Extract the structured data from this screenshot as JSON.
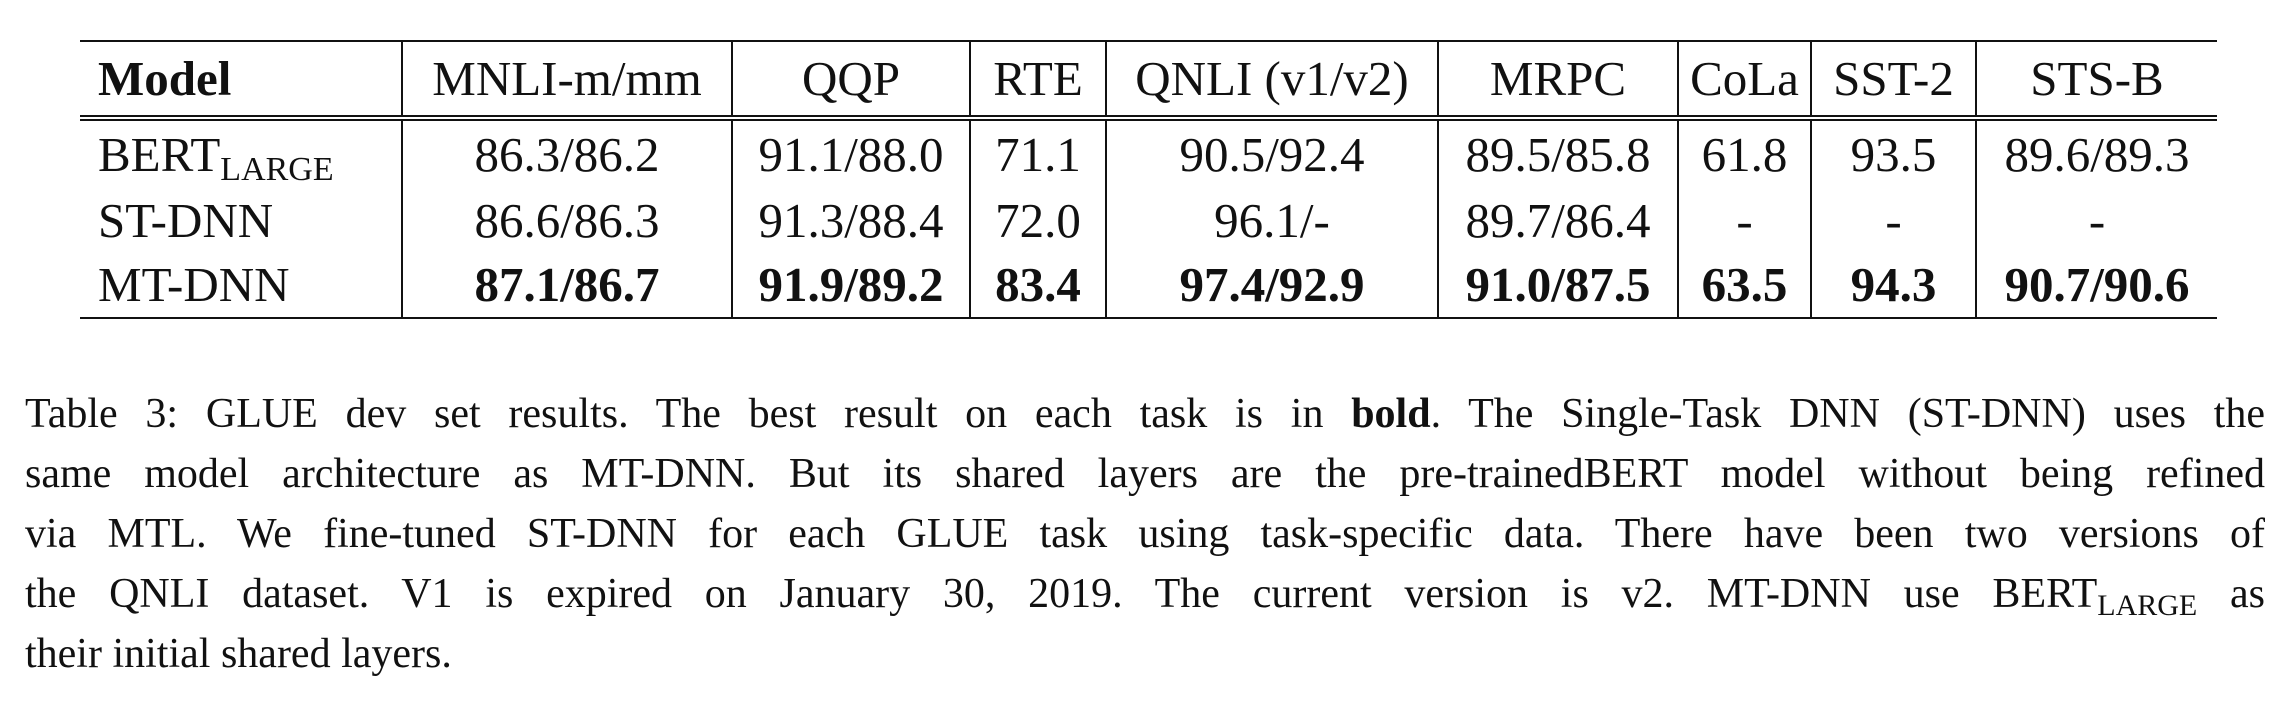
{
  "table": {
    "headers": [
      "Model",
      "MNLI-m/mm",
      "QQP",
      "RTE",
      "QNLI (v1/v2)",
      "MRPC",
      "CoLa",
      "SST-2",
      "STS-B"
    ],
    "rows": [
      {
        "model": "BERT",
        "model_subscript": "LARGE",
        "values": [
          "86.3/86.2",
          "91.1/88.0",
          "71.1",
          "90.5/92.4",
          "89.5/85.8",
          "61.8",
          "93.5",
          "89.6/89.3"
        ]
      },
      {
        "model": "ST-DNN",
        "model_subscript": "",
        "values": [
          "86.6/86.3",
          "91.3/88.4",
          "72.0",
          "96.1/-",
          "89.7/86.4",
          "-",
          "-",
          "-"
        ]
      },
      {
        "model": "MT-DNN",
        "model_subscript": "",
        "values": [
          "87.1/86.7",
          "91.9/89.2",
          "83.4",
          "97.4/92.9",
          "91.0/87.5",
          "63.5",
          "94.3",
          "90.7/90.6"
        ]
      }
    ]
  },
  "caption": {
    "line1_before_bold": "Table 3: GLUE dev set results. The best result on each task is in ",
    "line1_bold": "bold",
    "line1_after_bold": ". The Single-Task DNN (ST-DNN) uses the",
    "line2": "same model architecture as MT-DNN. But its shared layers are the pre-trainedBERT model without being refined",
    "line3": "via MTL. We fine-tuned ST-DNN for each GLUE task using task-specific data. There have been two versions of",
    "line4_before_sub": "the QNLI dataset. V1 is expired on January 30, 2019. The current version is v2. MT-DNN use BERT",
    "line4_sub": "LARGE",
    "line4_after_sub": " as",
    "line5": "their initial shared layers."
  }
}
